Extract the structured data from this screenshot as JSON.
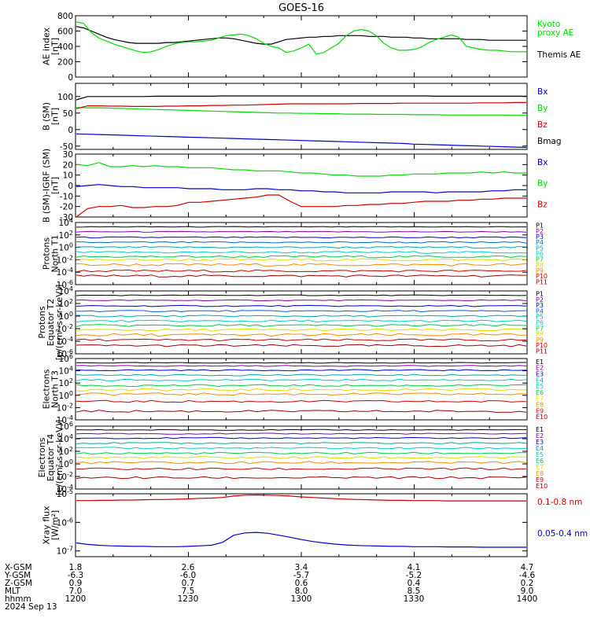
{
  "title": "GOES-16",
  "colors": {
    "black": "#000000",
    "green": "#00dd00",
    "blue": "#0000cc",
    "red": "#cc0000",
    "navy": "#000080",
    "cyan": "#00cccc",
    "yellow": "#dddd00",
    "orange": "#ff8800",
    "darkred": "#a00000",
    "purple": "#8800aa",
    "teal": "#00aaaa"
  },
  "footer": {
    "rows": [
      {
        "label": "X-GSM",
        "values": [
          "1.8",
          "2.6",
          "3.4",
          "4.1",
          "4.7"
        ]
      },
      {
        "label": "Y-GSM",
        "values": [
          "-6.3",
          "-6.0",
          "-5.7",
          "-5.2",
          "-4.6"
        ]
      },
      {
        "label": "Z-GSM",
        "values": [
          "0.9",
          "0.7",
          "0.6",
          "0.4",
          "0.2"
        ]
      },
      {
        "label": "MLT",
        "values": [
          "7.0",
          "7.5",
          "8.0",
          "8.5",
          "9.0"
        ]
      },
      {
        "label": "hhmm",
        "values": [
          "1200",
          "1230",
          "1300",
          "1330",
          "1400"
        ]
      }
    ],
    "date": "2024 Sep 13"
  },
  "chart_data": [
    {
      "type": "line",
      "ylabel": [
        "AE index",
        "[nT]"
      ],
      "ylim": [
        0,
        800
      ],
      "yticks": [
        "0",
        "200",
        "400",
        "600",
        "800"
      ],
      "legend": [
        {
          "text": [
            "Kyoto",
            "proxy AE"
          ],
          "color": "#00dd00"
        },
        {
          "text": [
            "Themis AE"
          ],
          "color": "#000000"
        }
      ],
      "series": [
        {
          "name": "Themis AE",
          "color": "#000000",
          "values": [
            660,
            640,
            600,
            560,
            520,
            490,
            470,
            450,
            440,
            440,
            440,
            440,
            450,
            450,
            460,
            470,
            480,
            490,
            500,
            510,
            510,
            500,
            480,
            460,
            440,
            430,
            430,
            460,
            490,
            500,
            510,
            520,
            520,
            530,
            530,
            540,
            540,
            540,
            540,
            530,
            530,
            530,
            520,
            520,
            520,
            510,
            510,
            500,
            500,
            500,
            500,
            500,
            490,
            490,
            490,
            480,
            480,
            480,
            480,
            480,
            480
          ]
        },
        {
          "name": "Kyoto proxy AE",
          "color": "#00dd00",
          "values": [
            720,
            700,
            580,
            510,
            470,
            430,
            400,
            370,
            340,
            320,
            330,
            360,
            400,
            430,
            450,
            460,
            460,
            470,
            480,
            510,
            540,
            550,
            560,
            540,
            500,
            440,
            400,
            380,
            320,
            340,
            380,
            430,
            300,
            320,
            380,
            440,
            540,
            600,
            620,
            600,
            540,
            440,
            380,
            350,
            350,
            360,
            390,
            450,
            490,
            520,
            550,
            520,
            400,
            380,
            360,
            350,
            350,
            340,
            330,
            330,
            330
          ]
        }
      ]
    },
    {
      "type": "line",
      "ylabel": [
        "B (SM)",
        "[nT]"
      ],
      "ylim": [
        -60,
        140
      ],
      "yticks": [
        "-50",
        "0",
        "50",
        "100"
      ],
      "legend": [
        {
          "text": [
            "Bx"
          ],
          "color": "#0000cc"
        },
        {
          "text": [
            "By"
          ],
          "color": "#00dd00"
        },
        {
          "text": [
            "Bz"
          ],
          "color": "#cc0000"
        },
        {
          "text": [
            "Bmag"
          ],
          "color": "#000000"
        }
      ],
      "series": [
        {
          "name": "Bx",
          "color": "#0000cc",
          "values": [
            -13,
            -14,
            -15,
            -16,
            -17,
            -18,
            -19,
            -20,
            -21,
            -22,
            -23,
            -24,
            -25,
            -26,
            -27,
            -28,
            -29,
            -30,
            -31,
            -32,
            -33,
            -34,
            -35,
            -36,
            -37,
            -38,
            -39,
            -40,
            -41,
            -42,
            -44,
            -45,
            -46,
            -47,
            -48,
            -49,
            -50,
            -51,
            -52,
            -53,
            -54
          ]
        },
        {
          "name": "By",
          "color": "#00dd00",
          "values": [
            67,
            66,
            66,
            65,
            64,
            63,
            62,
            61,
            60,
            59,
            58,
            57,
            56,
            55,
            54,
            53,
            52,
            51,
            50,
            50,
            49,
            49,
            48,
            48,
            47,
            47,
            47,
            46,
            46,
            46,
            45,
            45,
            45,
            44,
            44,
            44,
            44,
            44,
            44,
            43,
            43
          ]
        },
        {
          "name": "Bz",
          "color": "#cc0000",
          "values": [
            63,
            72,
            72,
            71,
            71,
            70,
            70,
            70,
            71,
            71,
            72,
            72,
            73,
            73,
            74,
            74,
            75,
            76,
            77,
            78,
            78,
            78,
            78,
            78,
            78,
            79,
            79,
            79,
            79,
            80,
            80,
            80,
            80,
            80,
            80,
            80,
            81,
            81,
            81,
            82,
            82
          ]
        },
        {
          "name": "Bmag",
          "color": "#000000",
          "values": [
            90,
            100,
            100,
            100,
            100,
            100,
            100,
            101,
            101,
            101,
            101,
            101,
            101,
            102,
            102,
            102,
            102,
            102,
            102,
            102,
            102,
            102,
            102,
            102,
            102,
            102,
            102,
            102,
            102,
            102,
            102,
            102,
            101,
            101,
            101,
            101,
            101,
            101,
            101,
            101,
            101
          ]
        }
      ]
    },
    {
      "type": "line",
      "ylabel": [
        "B (SM)-IGRF (SM)",
        "[nT]"
      ],
      "ylim": [
        -30,
        30
      ],
      "yticks": [
        "-30",
        "-20",
        "-10",
        "0",
        "10",
        "20",
        "30"
      ],
      "legend": [
        {
          "text": [
            "Bx"
          ],
          "color": "#0000cc"
        },
        {
          "text": [
            "By"
          ],
          "color": "#00dd00"
        },
        {
          "text": [
            "Bz"
          ],
          "color": "#cc0000"
        }
      ],
      "series": [
        {
          "name": "Bx",
          "color": "#0000cc",
          "values": [
            -1,
            0,
            1,
            0,
            -1,
            -1,
            -2,
            -2,
            -2,
            -2,
            -3,
            -3,
            -3,
            -4,
            -4,
            -4,
            -3,
            -3,
            -4,
            -4,
            -5,
            -5,
            -6,
            -6,
            -7,
            -7,
            -7,
            -7,
            -6,
            -6,
            -6,
            -6,
            -7,
            -6,
            -6,
            -6,
            -6,
            -5,
            -5,
            -4,
            -4
          ]
        },
        {
          "name": "By",
          "color": "#00dd00",
          "values": [
            20,
            19,
            22,
            18,
            18,
            19,
            18,
            19,
            18,
            18,
            17,
            17,
            17,
            16,
            15,
            15,
            14,
            14,
            14,
            13,
            12,
            12,
            11,
            10,
            10,
            9,
            9,
            9,
            10,
            10,
            11,
            11,
            11,
            12,
            12,
            12,
            13,
            12,
            13,
            12,
            12
          ]
        },
        {
          "name": "Bz",
          "color": "#cc0000",
          "values": [
            -30,
            -22,
            -20,
            -20,
            -19,
            -21,
            -21,
            -20,
            -20,
            -19,
            -16,
            -16,
            -15,
            -14,
            -13,
            -12,
            -11,
            -9,
            -9,
            -15,
            -20,
            -20,
            -20,
            -20,
            -19,
            -19,
            -18,
            -18,
            -17,
            -17,
            -16,
            -15,
            -15,
            -15,
            -14,
            -14,
            -13,
            -13,
            -12,
            -12,
            -12
          ]
        }
      ]
    },
    {
      "type": "line",
      "log": true,
      "ylabel": [
        "Protons",
        "North T1"
      ],
      "ylim_exp": [
        -6,
        4
      ],
      "yticks": [
        "10^4",
        "10^2",
        "10^0",
        "10^-2",
        "10^-4",
        "10^-6"
      ],
      "channels": [
        {
          "name": "P1",
          "color": "#000000",
          "level": 3.3
        },
        {
          "name": "P2",
          "color": "#8800aa",
          "level": 2.5
        },
        {
          "name": "P3",
          "color": "#0000cc",
          "level": 1.6
        },
        {
          "name": "P4",
          "color": "#0066dd",
          "level": 0.8
        },
        {
          "name": "P5",
          "color": "#00aaaa",
          "level": 0.0
        },
        {
          "name": "P6",
          "color": "#00cccc",
          "level": -0.8
        },
        {
          "name": "P7",
          "color": "#00cc44",
          "level": -1.5
        },
        {
          "name": "P8",
          "color": "#dddd00",
          "level": -2.0
        },
        {
          "name": "P9",
          "color": "#ff8800",
          "level": -2.8
        },
        {
          "name": "P10",
          "color": "#cc0000",
          "level": -3.8
        },
        {
          "name": "P11",
          "color": "#a00000",
          "level": -4.6
        }
      ]
    },
    {
      "type": "line",
      "log": true,
      "ylabel": [
        "Protons",
        "Equator T2",
        "[p/(cm²-s-sr-keV)]"
      ],
      "ylim_exp": [
        -6,
        4
      ],
      "yticks": [
        "10^4",
        "10^2",
        "10^0",
        "10^-2",
        "10^-4",
        "10^-6"
      ],
      "channels": [
        {
          "name": "P1",
          "color": "#000000",
          "level": 3.3
        },
        {
          "name": "P2",
          "color": "#8800aa",
          "level": 2.5
        },
        {
          "name": "P3",
          "color": "#0000cc",
          "level": 1.6
        },
        {
          "name": "P4",
          "color": "#0066dd",
          "level": 0.8
        },
        {
          "name": "P5",
          "color": "#00aaaa",
          "level": 0.0
        },
        {
          "name": "P6",
          "color": "#00cccc",
          "level": -0.8
        },
        {
          "name": "P7",
          "color": "#00cc44",
          "level": -1.5
        },
        {
          "name": "P8",
          "color": "#dddd00",
          "level": -2.2
        },
        {
          "name": "P9",
          "color": "#ff8800",
          "level": -3.0
        },
        {
          "name": "P10",
          "color": "#cc0000",
          "level": -3.8
        },
        {
          "name": "P11",
          "color": "#a00000",
          "level": -4.7
        }
      ]
    },
    {
      "type": "line",
      "log": true,
      "ylabel": [
        "Electrons",
        "North T3"
      ],
      "ylim_exp": [
        -4,
        6
      ],
      "yticks": [
        "10^6",
        "10^4",
        "10^2",
        "10^0",
        "10^-2",
        "10^-4"
      ],
      "channels": [
        {
          "name": "E1",
          "color": "#000000",
          "level": 5.3
        },
        {
          "name": "E2",
          "color": "#8800aa",
          "level": 4.8
        },
        {
          "name": "E3",
          "color": "#0000cc",
          "level": 4.1
        },
        {
          "name": "E4",
          "color": "#00aaaa",
          "level": 3.3
        },
        {
          "name": "E5",
          "color": "#00cccc",
          "level": 2.5
        },
        {
          "name": "E6",
          "color": "#00cc44",
          "level": 1.6
        },
        {
          "name": "E7",
          "color": "#dddd00",
          "level": 0.9
        },
        {
          "name": "E8",
          "color": "#ff8800",
          "level": 0.2
        },
        {
          "name": "E9",
          "color": "#cc0000",
          "level": -1.0
        },
        {
          "name": "E10",
          "color": "#a00000",
          "level": -2.6
        }
      ]
    },
    {
      "type": "line",
      "log": true,
      "ylabel": [
        "Electrons",
        "Equator T4",
        "[e/(cm²-s-sr-keV)]"
      ],
      "ylim_exp": [
        -4,
        6
      ],
      "yticks": [
        "10^6",
        "10^4",
        "10^2",
        "10^0",
        "10^-2",
        "10^-4"
      ],
      "channels": [
        {
          "name": "E1",
          "color": "#000000",
          "level": 5.4
        },
        {
          "name": "E2",
          "color": "#8800aa",
          "level": 4.8
        },
        {
          "name": "E3",
          "color": "#0000cc",
          "level": 4.1
        },
        {
          "name": "E4",
          "color": "#00aaaa",
          "level": 3.3
        },
        {
          "name": "E5",
          "color": "#00cccc",
          "level": 2.5
        },
        {
          "name": "E6",
          "color": "#00cc44",
          "level": 1.7
        },
        {
          "name": "E7",
          "color": "#dddd00",
          "level": 1.0
        },
        {
          "name": "E8",
          "color": "#ff8800",
          "level": 0.2
        },
        {
          "name": "E9",
          "color": "#cc0000",
          "level": -0.8
        },
        {
          "name": "E10",
          "color": "#a00000",
          "level": -2.2
        }
      ]
    },
    {
      "type": "line",
      "log": true,
      "ylabel": [
        "Xray flux",
        "[W/m²]"
      ],
      "ylim_exp": [
        -7.2,
        -5
      ],
      "yticks": [
        "10^-5",
        "10^-6",
        "10^-7"
      ],
      "legend": [
        {
          "text": [
            "0.1-0.8 nm"
          ],
          "color": "#cc0000"
        },
        {
          "text": [
            "0.05-0.4 nm"
          ],
          "color": "#0000cc"
        }
      ],
      "series": [
        {
          "name": "0.1-0.8 nm",
          "color": "#cc0000",
          "values": [
            -5.24,
            -5.24,
            -5.23,
            -5.23,
            -5.22,
            -5.22,
            -5.21,
            -5.2,
            -5.2,
            -5.19,
            -5.18,
            -5.16,
            -5.15,
            -5.13,
            -5.08,
            -5.05,
            -5.04,
            -5.05,
            -5.06,
            -5.08,
            -5.11,
            -5.13,
            -5.15,
            -5.17,
            -5.19,
            -5.2,
            -5.21,
            -5.22,
            -5.23,
            -5.23,
            -5.24,
            -5.24,
            -5.24,
            -5.25,
            -5.25,
            -5.25,
            -5.25,
            -5.25,
            -5.25,
            -5.25,
            -5.25
          ]
        },
        {
          "name": "0.05-0.4 nm",
          "color": "#0000cc",
          "values": [
            -6.72,
            -6.77,
            -6.8,
            -6.82,
            -6.83,
            -6.84,
            -6.84,
            -6.85,
            -6.85,
            -6.85,
            -6.84,
            -6.82,
            -6.8,
            -6.7,
            -6.45,
            -6.37,
            -6.35,
            -6.38,
            -6.45,
            -6.52,
            -6.6,
            -6.67,
            -6.72,
            -6.76,
            -6.79,
            -6.81,
            -6.82,
            -6.83,
            -6.84,
            -6.84,
            -6.85,
            -6.85,
            -6.85,
            -6.86,
            -6.86,
            -6.86,
            -6.87,
            -6.87,
            -6.87,
            -6.87,
            -6.87
          ]
        }
      ]
    }
  ]
}
